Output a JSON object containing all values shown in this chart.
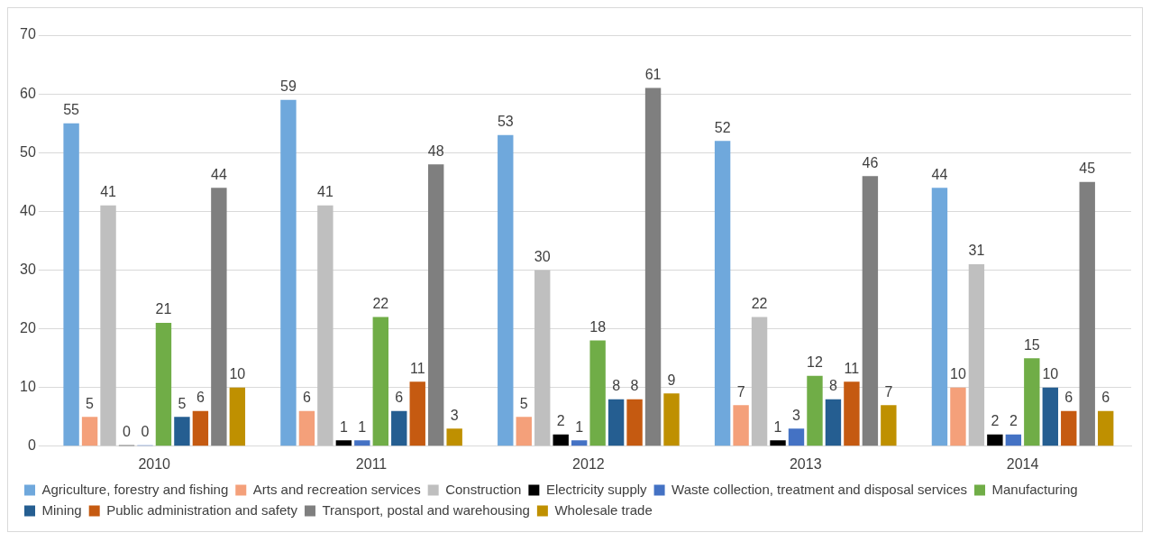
{
  "chart_data": {
    "type": "bar",
    "categories": [
      "2010",
      "2011",
      "2012",
      "2013",
      "2014"
    ],
    "ylim": [
      0,
      70
    ],
    "yticks": [
      0,
      10,
      20,
      30,
      40,
      50,
      60,
      70
    ],
    "grid": "y",
    "legend": "bottom",
    "data_labels": true,
    "series": [
      {
        "name": "Agriculture, forestry and fishing",
        "color": "#6fa8dc",
        "values": [
          55,
          59,
          53,
          52,
          44
        ]
      },
      {
        "name": "Arts and recreation services",
        "color": "#f4a07a",
        "values": [
          5,
          6,
          5,
          7,
          10
        ]
      },
      {
        "name": "Construction",
        "color": "#bfbfbf",
        "values": [
          41,
          41,
          30,
          22,
          31
        ]
      },
      {
        "name": "Electricity supply",
        "color": "#000000",
        "values": [
          0,
          1,
          2,
          1,
          2
        ]
      },
      {
        "name": "Waste collection, treatment and disposal services",
        "color": "#4472c4",
        "values": [
          0,
          1,
          1,
          3,
          2
        ]
      },
      {
        "name": "Manufacturing",
        "color": "#70ad47",
        "values": [
          21,
          22,
          18,
          12,
          15
        ]
      },
      {
        "name": "Mining",
        "color": "#255e91",
        "values": [
          5,
          6,
          8,
          8,
          10
        ]
      },
      {
        "name": "Public administration and safety",
        "color": "#c55a11",
        "values": [
          6,
          11,
          8,
          11,
          6
        ]
      },
      {
        "name": "Transport, postal and warehousing",
        "color": "#7f7f7f",
        "values": [
          44,
          48,
          61,
          46,
          45
        ]
      },
      {
        "name": "Wholesale trade",
        "color": "#bf9000",
        "values": [
          10,
          3,
          9,
          7,
          6
        ]
      }
    ]
  }
}
